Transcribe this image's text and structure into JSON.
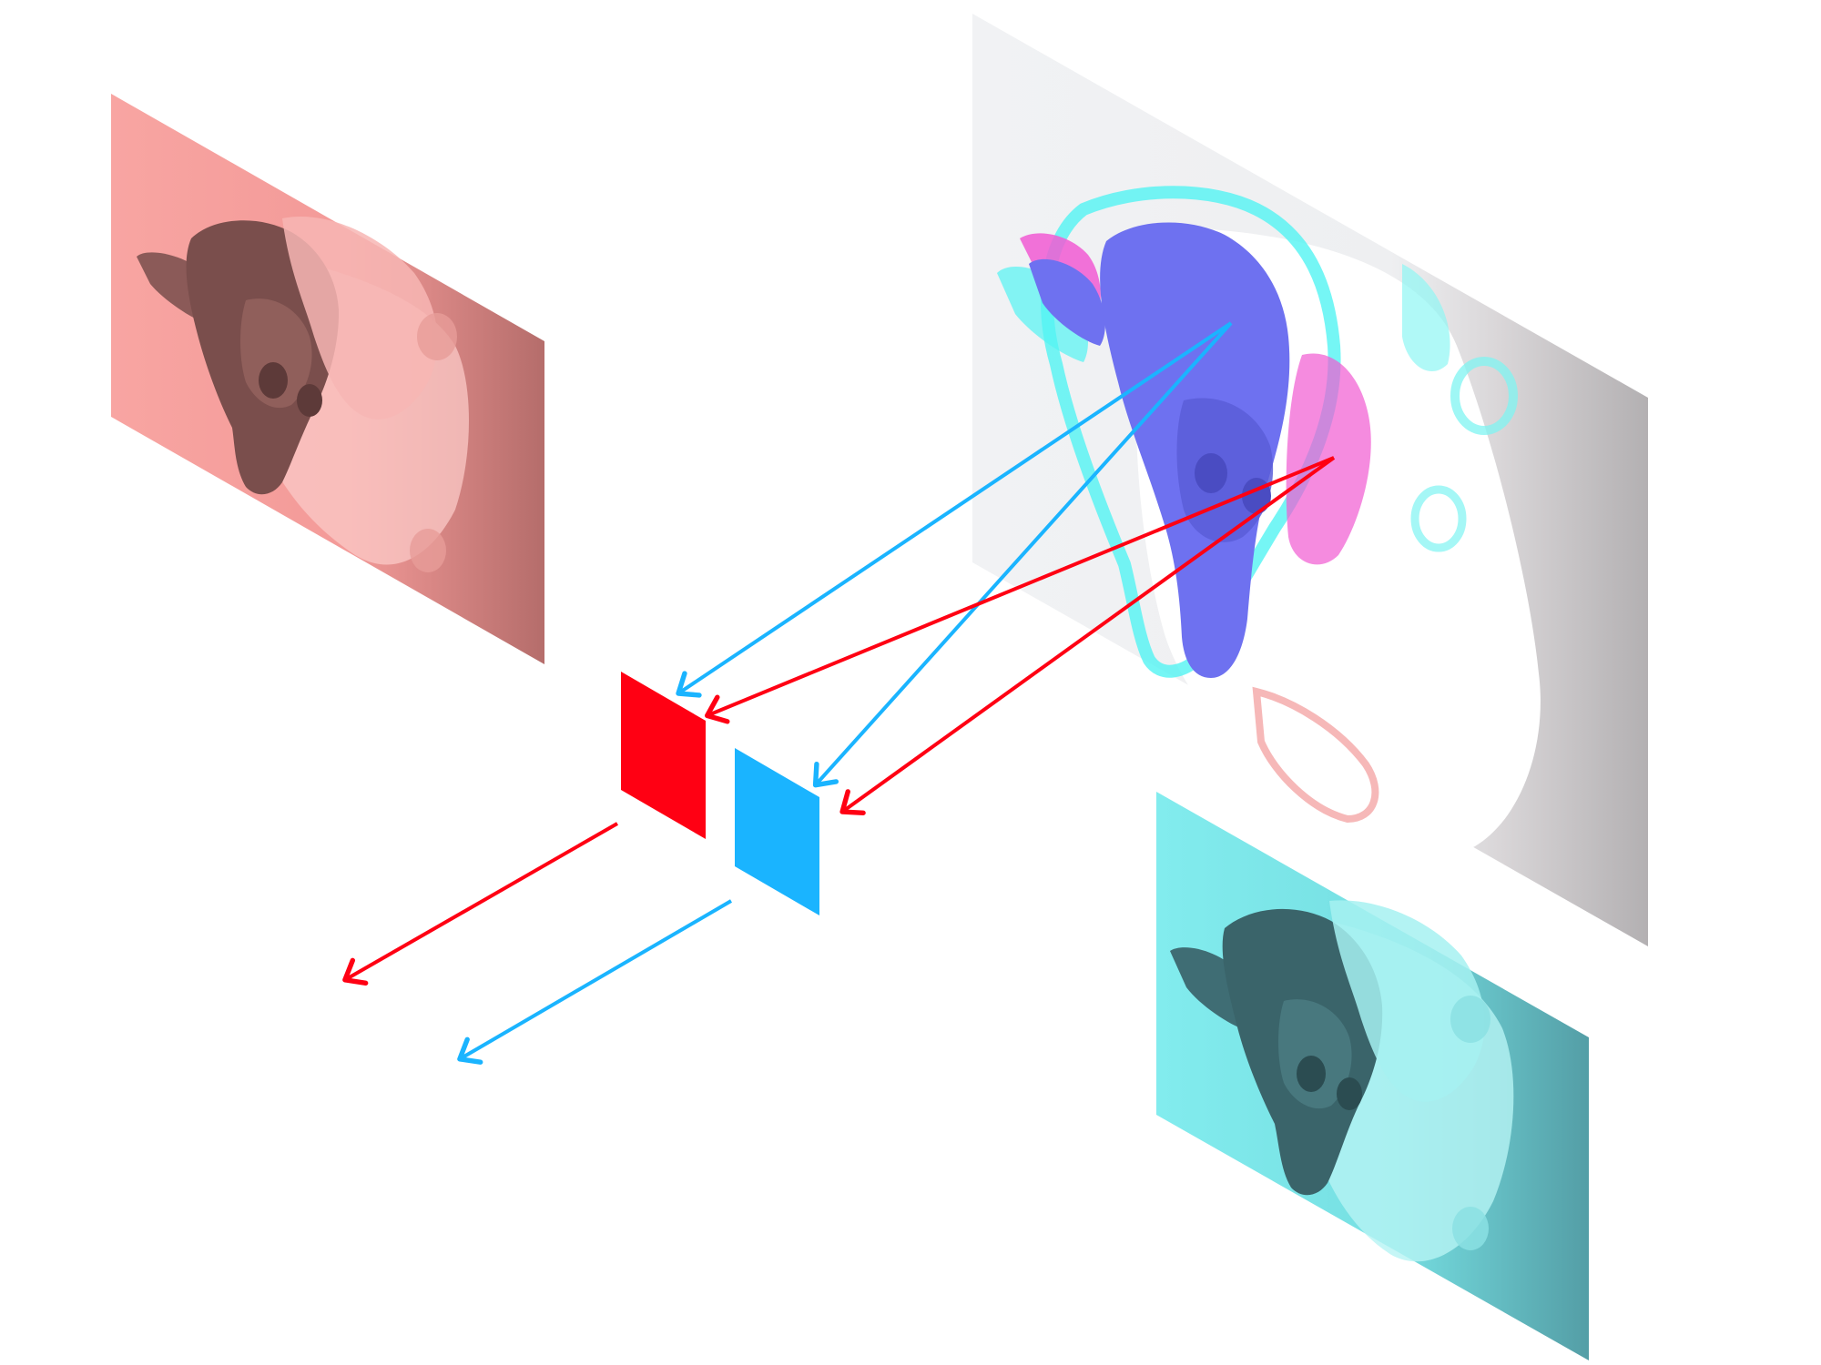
{
  "diagram": {
    "description_free": true,
    "colors": {
      "red": "#ff0013",
      "cyan": "#1ab4ff",
      "red_panel_bg": "#f6a2a0",
      "red_panel_shadow": "#b86e6c",
      "cyan_panel_bg": "#7ee8ea",
      "cyan_panel_shadow": "#5aa9b0",
      "anaglyph_bg": "#eeeff1",
      "anaglyph_shadow": "#b9b6b8",
      "monkey_blue": "#6e71f0",
      "monkey_magenta": "#f15ad2",
      "monkey_cyan": "#52f4f2",
      "monkey_red_dark": "#8b5a58",
      "monkey_cyan_dark": "#3f6d74"
    },
    "icons": {
      "left_eye_filter": "red-filter-icon",
      "right_eye_filter": "cyan-filter-icon",
      "subject": "monkey-head-icon"
    }
  }
}
